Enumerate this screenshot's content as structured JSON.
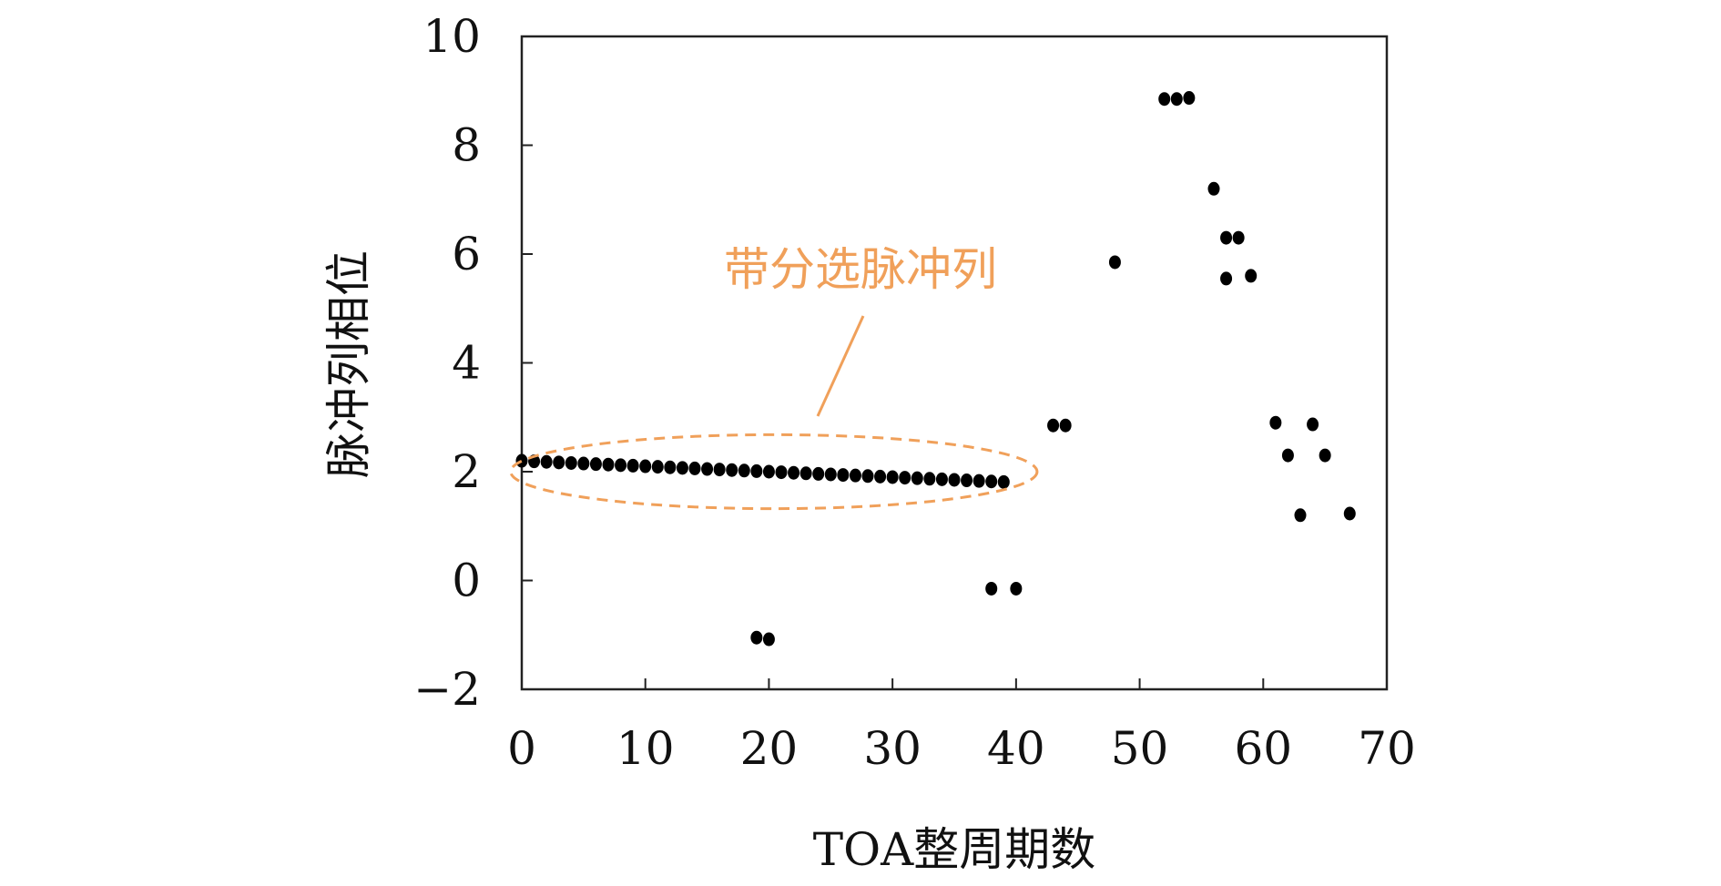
{
  "chart_data": {
    "type": "scatter",
    "xlabel": "TOA整周期数",
    "ylabel": "脉冲列相位",
    "xlim": [
      0,
      70
    ],
    "ylim": [
      -2,
      10
    ],
    "xticks": [
      "0",
      "10",
      "20",
      "30",
      "40",
      "50",
      "60",
      "70"
    ],
    "yticks": [
      "−2",
      "0",
      "2",
      "4",
      "6",
      "8",
      "10"
    ],
    "grid": false,
    "points": [
      {
        "x": 0,
        "y": 2.2
      },
      {
        "x": 1,
        "y": 2.19
      },
      {
        "x": 2,
        "y": 2.18
      },
      {
        "x": 3,
        "y": 2.17
      },
      {
        "x": 4,
        "y": 2.16
      },
      {
        "x": 5,
        "y": 2.15
      },
      {
        "x": 6,
        "y": 2.14
      },
      {
        "x": 7,
        "y": 2.13
      },
      {
        "x": 8,
        "y": 2.12
      },
      {
        "x": 9,
        "y": 2.11
      },
      {
        "x": 10,
        "y": 2.1
      },
      {
        "x": 11,
        "y": 2.09
      },
      {
        "x": 12,
        "y": 2.08
      },
      {
        "x": 13,
        "y": 2.07
      },
      {
        "x": 14,
        "y": 2.06
      },
      {
        "x": 15,
        "y": 2.05
      },
      {
        "x": 16,
        "y": 2.04
      },
      {
        "x": 17,
        "y": 2.03
      },
      {
        "x": 18,
        "y": 2.02
      },
      {
        "x": 19,
        "y": 2.01
      },
      {
        "x": 20,
        "y": 2.0
      },
      {
        "x": 21,
        "y": 1.99
      },
      {
        "x": 22,
        "y": 1.98
      },
      {
        "x": 23,
        "y": 1.97
      },
      {
        "x": 24,
        "y": 1.96
      },
      {
        "x": 25,
        "y": 1.95
      },
      {
        "x": 26,
        "y": 1.94
      },
      {
        "x": 27,
        "y": 1.93
      },
      {
        "x": 28,
        "y": 1.92
      },
      {
        "x": 29,
        "y": 1.91
      },
      {
        "x": 30,
        "y": 1.9
      },
      {
        "x": 31,
        "y": 1.89
      },
      {
        "x": 32,
        "y": 1.88
      },
      {
        "x": 33,
        "y": 1.87
      },
      {
        "x": 34,
        "y": 1.86
      },
      {
        "x": 35,
        "y": 1.85
      },
      {
        "x": 36,
        "y": 1.84
      },
      {
        "x": 37,
        "y": 1.83
      },
      {
        "x": 38,
        "y": 1.82
      },
      {
        "x": 39,
        "y": 1.81
      },
      {
        "x": 19,
        "y": -1.05
      },
      {
        "x": 20,
        "y": -1.08
      },
      {
        "x": 38,
        "y": -0.15
      },
      {
        "x": 40,
        "y": -0.15
      },
      {
        "x": 43,
        "y": 2.85
      },
      {
        "x": 44,
        "y": 2.85
      },
      {
        "x": 48,
        "y": 5.85
      },
      {
        "x": 52,
        "y": 8.85
      },
      {
        "x": 53,
        "y": 8.85
      },
      {
        "x": 54,
        "y": 8.87
      },
      {
        "x": 56,
        "y": 7.2
      },
      {
        "x": 57,
        "y": 6.3
      },
      {
        "x": 58,
        "y": 6.3
      },
      {
        "x": 57,
        "y": 5.55
      },
      {
        "x": 59,
        "y": 5.6
      },
      {
        "x": 61,
        "y": 2.9
      },
      {
        "x": 64,
        "y": 2.87
      },
      {
        "x": 62,
        "y": 2.3
      },
      {
        "x": 65,
        "y": 2.3
      },
      {
        "x": 63,
        "y": 1.2
      },
      {
        "x": 67,
        "y": 1.23
      }
    ],
    "annotation": {
      "text": "带分选脉冲列",
      "color": "#f0a05a",
      "ellipse": {
        "cx": 20.4,
        "cy": 2.0,
        "rx": 21.3,
        "ry": 0.68
      }
    },
    "marker_color": "#000000"
  }
}
